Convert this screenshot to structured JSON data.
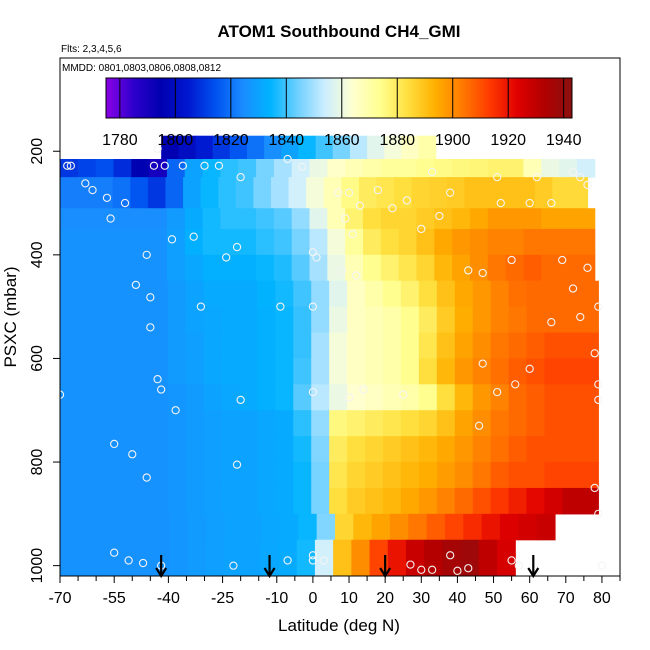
{
  "chart_data": {
    "type": "heatmap",
    "title": "ATOM1 Southbound CH4_GMI",
    "subtitle_flights": "Flts: 2,3,4,5,6",
    "subtitle_dates": "MMDD: 0801,0803,0806,0808,0812",
    "xlabel": "Latitude (deg N)",
    "ylabel": "PSXC (mbar)",
    "xlim": [
      -70,
      85
    ],
    "ylim": [
      1020,
      20
    ],
    "x_ticks": [
      -70,
      -55,
      -40,
      -25,
      -10,
      0,
      10,
      20,
      30,
      40,
      50,
      60,
      70,
      80
    ],
    "x_tick_labels": [
      "-70",
      "-55",
      "-40",
      "-25",
      "-10",
      "0",
      "10",
      "20",
      "30",
      "40",
      "50",
      "60",
      "70",
      "80"
    ],
    "x_minor_ticks": [
      -65,
      -60,
      -50,
      -45,
      -35,
      -30,
      -20,
      -15,
      -5,
      5,
      15,
      25,
      35,
      45,
      55,
      65,
      75,
      85
    ],
    "y_ticks": [
      200,
      400,
      600,
      800,
      1000
    ],
    "y_tick_labels": [
      "200",
      "400",
      "600",
      "800",
      "1000"
    ],
    "colorbar": {
      "min": 1775,
      "max": 1943,
      "ticks": [
        1780,
        1800,
        1820,
        1840,
        1860,
        1880,
        1900,
        1920,
        1940
      ],
      "tick_labels": [
        "1780",
        "1800",
        "1820",
        "1840",
        "1860",
        "1880",
        "1900",
        "1920",
        "1940"
      ],
      "colors": [
        "#8a00e6",
        "#2e00cc",
        "#0000b0",
        "#0018d0",
        "#0052f0",
        "#1a8cff",
        "#00b4ff",
        "#6fd0ff",
        "#cdeeff",
        "#ffffd0",
        "#ffff90",
        "#ffe040",
        "#ffb000",
        "#ff7a00",
        "#ff3a00",
        "#e00000",
        "#b00000",
        "#8c1010"
      ]
    },
    "latitude_bins": [
      -67.5,
      -62.5,
      -57.5,
      -52.5,
      -47.5,
      -42.5,
      -37.5,
      -32.5,
      -27.5,
      -22.5,
      -17.5,
      -12.5,
      -7.5,
      -2.5,
      2.5,
      7.5,
      12.5,
      17.5,
      22.5,
      27.5,
      32.5,
      37.5,
      42.5,
      47.5,
      52.5,
      57.5,
      62.5,
      67.5,
      72.5,
      77.5
    ],
    "pressure_levels": [
      {
        "p_top": 170,
        "p_bottom": 215,
        "lat_min": -42,
        "lat_max": 34,
        "values": [
          1795,
          1800,
          1805,
          1810,
          1815,
          1820,
          1825,
          1830,
          1835,
          1840,
          1845,
          1852,
          1858,
          1862,
          1866,
          1870
        ]
      },
      {
        "p_top": 215,
        "p_bottom": 250,
        "lat_min": -70,
        "lat_max": 78,
        "values": [
          1810,
          1812,
          1814,
          1808,
          1795,
          1790,
          1818,
          1830,
          1835,
          1838,
          1840,
          1845,
          1850,
          1855,
          1860,
          1865,
          1868,
          1870,
          1872,
          1872,
          1874,
          1875,
          1876,
          1877,
          1878,
          1878,
          1868,
          1860,
          1858,
          1855
        ]
      },
      {
        "p_top": 250,
        "p_bottom": 310,
        "lat_min": -70,
        "lat_max": 76,
        "values": [
          1822,
          1822,
          1822,
          1820,
          1815,
          1810,
          1818,
          1830,
          1835,
          1838,
          1840,
          1845,
          1850,
          1855,
          1862,
          1868,
          1875,
          1880,
          1882,
          1884,
          1886,
          1887,
          1888,
          1890,
          1890,
          1890,
          1890,
          1888,
          1885,
          1885
        ]
      },
      {
        "p_top": 310,
        "p_bottom": 350,
        "lat_min": -70,
        "lat_max": 78,
        "values": [
          1825,
          1825,
          1825,
          1825,
          1825,
          1825,
          1828,
          1832,
          1836,
          1838,
          1838,
          1840,
          1842,
          1848,
          1858,
          1868,
          1878,
          1884,
          1886,
          1886,
          1888,
          1890,
          1892,
          1895,
          1898,
          1898,
          1898,
          1896,
          1896,
          1896
        ]
      },
      {
        "p_top": 350,
        "p_bottom": 400,
        "lat_min": -70,
        "lat_max": 78,
        "values": [
          1826,
          1826,
          1826,
          1826,
          1826,
          1826,
          1829,
          1833,
          1836,
          1836,
          1836,
          1838,
          1840,
          1845,
          1852,
          1862,
          1872,
          1880,
          1884,
          1886,
          1890,
          1895,
          1898,
          1900,
          1902,
          1902,
          1904,
          1904,
          1904,
          1904
        ]
      },
      {
        "p_top": 400,
        "p_bottom": 450,
        "lat_min": -70,
        "lat_max": 78,
        "values": [
          1826,
          1826,
          1826,
          1826,
          1826,
          1826,
          1829,
          1831,
          1833,
          1833,
          1833,
          1835,
          1837,
          1842,
          1850,
          1860,
          1868,
          1874,
          1878,
          1882,
          1886,
          1892,
          1896,
          1900,
          1904,
          1906,
          1908,
          1906,
          1906,
          1906
        ]
      },
      {
        "p_top": 450,
        "p_bottom": 500,
        "lat_min": -70,
        "lat_max": 79,
        "values": [
          1826,
          1826,
          1826,
          1826,
          1826,
          1826,
          1828,
          1830,
          1832,
          1832,
          1832,
          1834,
          1836,
          1840,
          1848,
          1858,
          1866,
          1870,
          1874,
          1878,
          1884,
          1890,
          1895,
          1898,
          1902,
          1905,
          1906,
          1906,
          1906,
          1906
        ]
      },
      {
        "p_top": 500,
        "p_bottom": 550,
        "lat_min": -70,
        "lat_max": 79,
        "values": [
          1826,
          1826,
          1826,
          1826,
          1826,
          1826,
          1828,
          1830,
          1831,
          1832,
          1832,
          1833,
          1835,
          1839,
          1848,
          1860,
          1866,
          1868,
          1870,
          1874,
          1880,
          1888,
          1894,
          1898,
          1902,
          1904,
          1906,
          1906,
          1906,
          1906
        ]
      },
      {
        "p_top": 550,
        "p_bottom": 600,
        "lat_min": -70,
        "lat_max": 79,
        "values": [
          1826,
          1826,
          1826,
          1826,
          1826,
          1826,
          1828,
          1829,
          1831,
          1832,
          1832,
          1833,
          1835,
          1839,
          1850,
          1862,
          1866,
          1868,
          1870,
          1874,
          1882,
          1890,
          1896,
          1900,
          1904,
          1906,
          1908,
          1910,
          1910,
          1910
        ]
      },
      {
        "p_top": 600,
        "p_bottom": 650,
        "lat_min": -70,
        "lat_max": 79,
        "values": [
          1826,
          1826,
          1826,
          1826,
          1826,
          1826,
          1828,
          1829,
          1831,
          1832,
          1832,
          1833,
          1835,
          1840,
          1850,
          1862,
          1866,
          1868,
          1870,
          1874,
          1884,
          1892,
          1898,
          1902,
          1905,
          1908,
          1910,
          1912,
          1912,
          1912
        ]
      },
      {
        "p_top": 650,
        "p_bottom": 700,
        "lat_min": -70,
        "lat_max": 79,
        "values": [
          1826,
          1826,
          1826,
          1826,
          1826,
          1826,
          1827,
          1828,
          1830,
          1831,
          1832,
          1833,
          1835,
          1842,
          1852,
          1860,
          1864,
          1866,
          1868,
          1870,
          1874,
          1884,
          1892,
          1898,
          1902,
          1906,
          1908,
          1910,
          1910,
          1910
        ]
      },
      {
        "p_top": 700,
        "p_bottom": 750,
        "lat_min": -70,
        "lat_max": 79,
        "values": [
          1826,
          1826,
          1826,
          1826,
          1826,
          1826,
          1827,
          1828,
          1829,
          1830,
          1830,
          1831,
          1832,
          1838,
          1848,
          1876,
          1878,
          1880,
          1882,
          1884,
          1886,
          1890,
          1896,
          1900,
          1904,
          1906,
          1908,
          1910,
          1910,
          1910
        ]
      },
      {
        "p_top": 750,
        "p_bottom": 800,
        "lat_min": -70,
        "lat_max": 79,
        "values": [
          1826,
          1826,
          1826,
          1826,
          1826,
          1826,
          1827,
          1828,
          1829,
          1830,
          1830,
          1831,
          1832,
          1836,
          1846,
          1880,
          1884,
          1886,
          1888,
          1890,
          1892,
          1895,
          1898,
          1902,
          1905,
          1908,
          1910,
          1910,
          1910,
          1910
        ]
      },
      {
        "p_top": 800,
        "p_bottom": 850,
        "lat_min": -70,
        "lat_max": 79,
        "values": [
          1826,
          1826,
          1826,
          1826,
          1826,
          1826,
          1827,
          1828,
          1829,
          1830,
          1830,
          1831,
          1832,
          1835,
          1845,
          1882,
          1886,
          1888,
          1890,
          1892,
          1894,
          1897,
          1900,
          1904,
          1908,
          1910,
          1910,
          1912,
          1912,
          1912
        ]
      },
      {
        "p_top": 850,
        "p_bottom": 900,
        "lat_min": -70,
        "lat_max": 79,
        "values": [
          1826,
          1826,
          1826,
          1826,
          1826,
          1826,
          1827,
          1828,
          1829,
          1830,
          1830,
          1831,
          1832,
          1835,
          1845,
          1884,
          1888,
          1890,
          1892,
          1895,
          1898,
          1902,
          1906,
          1910,
          1914,
          1918,
          1922,
          1926,
          1930,
          1930
        ]
      },
      {
        "p_top": 900,
        "p_bottom": 950,
        "lat_min": -70,
        "lat_max": 67,
        "values": [
          1826,
          1826,
          1826,
          1826,
          1826,
          1826,
          1827,
          1828,
          1829,
          1830,
          1830,
          1831,
          1832,
          1835,
          1846,
          1886,
          1892,
          1896,
          1900,
          1904,
          1908,
          1912,
          1916,
          1920,
          1924,
          1926,
          1928
        ]
      },
      {
        "p_top": 950,
        "p_bottom": 1000,
        "lat_min": -70,
        "lat_max": 56,
        "values": [
          1826,
          1826,
          1826,
          1826,
          1826,
          1826,
          1827,
          1828,
          1829,
          1830,
          1830,
          1831,
          1832,
          1836,
          1855,
          1890,
          1900,
          1912,
          1920,
          1928,
          1932,
          1936,
          1938,
          1930,
          1925
        ]
      },
      {
        "p_top": 1000,
        "p_bottom": 1020,
        "lat_min": -70,
        "lat_max": 56,
        "values": [
          1826,
          1826,
          1826,
          1826,
          1826,
          1826,
          1827,
          1828,
          1829,
          1830,
          1830,
          1831,
          1832,
          1836,
          1855,
          1890,
          1900,
          1912,
          1920,
          1928,
          1932,
          1936,
          1938,
          1930,
          1925
        ]
      }
    ],
    "sample_points": [
      [
        -68,
        228
      ],
      [
        -67,
        228
      ],
      [
        -63,
        262
      ],
      [
        -61,
        275
      ],
      [
        -57,
        290
      ],
      [
        -56,
        330
      ],
      [
        -52,
        300
      ],
      [
        -49,
        458
      ],
      [
        -46,
        400
      ],
      [
        -45,
        482
      ],
      [
        -45,
        540
      ],
      [
        -44,
        228
      ],
      [
        -43,
        195
      ],
      [
        -41,
        228
      ],
      [
        -39,
        370
      ],
      [
        -36,
        228
      ],
      [
        -33,
        365
      ],
      [
        -31,
        500
      ],
      [
        -30,
        228
      ],
      [
        -26,
        228
      ],
      [
        -24,
        405
      ],
      [
        -21,
        385
      ],
      [
        -20,
        250
      ],
      [
        -9,
        500
      ],
      [
        -7,
        215
      ],
      [
        -3,
        230
      ],
      [
        0,
        395
      ],
      [
        1,
        405
      ],
      [
        0,
        500
      ],
      [
        7,
        280
      ],
      [
        8,
        430
      ],
      [
        9,
        330
      ],
      [
        10,
        280
      ],
      [
        11,
        360
      ],
      [
        12,
        440
      ],
      [
        13,
        305
      ],
      [
        18,
        275
      ],
      [
        22,
        310
      ],
      [
        26,
        295
      ],
      [
        30,
        350
      ],
      [
        33,
        240
      ],
      [
        35,
        325
      ],
      [
        38,
        280
      ],
      [
        43,
        430
      ],
      [
        47,
        435
      ],
      [
        51,
        250
      ],
      [
        52,
        300
      ],
      [
        55,
        410
      ],
      [
        60,
        300
      ],
      [
        62,
        250
      ],
      [
        66,
        300
      ],
      [
        69,
        410
      ],
      [
        72,
        240
      ],
      [
        74,
        250
      ],
      [
        76,
        265
      ],
      [
        79,
        500
      ],
      [
        -70,
        670
      ],
      [
        -55,
        765
      ],
      [
        -50,
        785
      ],
      [
        -46,
        830
      ],
      [
        -43,
        640
      ],
      [
        -42,
        660
      ],
      [
        -38,
        700
      ],
      [
        -20,
        680
      ],
      [
        -21,
        805
      ],
      [
        0,
        665
      ],
      [
        -55,
        975
      ],
      [
        -51,
        990
      ],
      [
        -47,
        995
      ],
      [
        -42,
        1000
      ],
      [
        -22,
        1000
      ],
      [
        -7,
        990
      ],
      [
        0,
        990
      ],
      [
        0,
        980
      ],
      [
        3,
        990
      ],
      [
        10,
        675
      ],
      [
        14,
        660
      ],
      [
        25,
        670
      ],
      [
        38,
        980
      ],
      [
        40,
        1010
      ],
      [
        43,
        1005
      ],
      [
        47,
        610
      ],
      [
        46,
        730
      ],
      [
        51,
        665
      ],
      [
        56,
        650
      ],
      [
        60,
        620
      ],
      [
        66,
        530
      ],
      [
        72,
        465
      ],
      [
        74,
        520
      ],
      [
        76,
        425
      ],
      [
        78,
        590
      ],
      [
        79,
        650
      ],
      [
        79,
        680
      ],
      [
        78,
        850
      ],
      [
        79,
        900
      ],
      [
        80,
        1000
      ],
      [
        57,
        1000
      ],
      [
        55,
        990
      ],
      [
        33,
        1008
      ],
      [
        30,
        1008
      ],
      [
        27,
        998
      ]
    ],
    "flight_start_arrows_lat": [
      -42,
      -12,
      20,
      61
    ]
  }
}
